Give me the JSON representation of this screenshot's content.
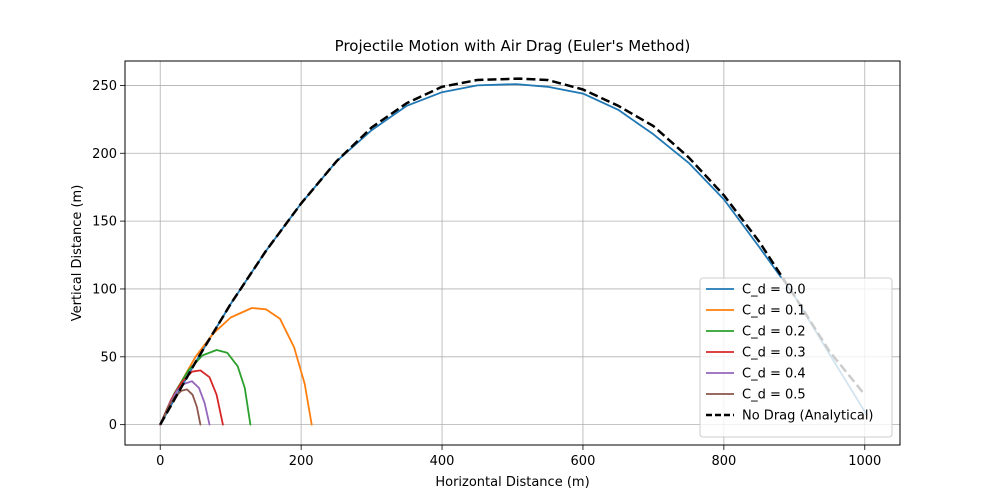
{
  "chart_data": {
    "type": "line",
    "title": "Projectile Motion with Air Drag (Euler's Method)",
    "xlabel": "Horizontal Distance (m)",
    "ylabel": "Vertical Distance (m)",
    "xlim": [
      -50,
      1050
    ],
    "ylim": [
      -15,
      268
    ],
    "xticks": [
      0,
      200,
      400,
      600,
      800,
      1000
    ],
    "yticks": [
      0,
      50,
      100,
      150,
      200,
      250
    ],
    "grid": true,
    "legend_position": "lower right",
    "series": [
      {
        "name": "C_d = 0.0",
        "color": "#1f77b4",
        "dash": "solid",
        "points": [
          [
            0,
            0
          ],
          [
            50,
            46
          ],
          [
            100,
            89
          ],
          [
            150,
            128
          ],
          [
            200,
            163
          ],
          [
            250,
            194
          ],
          [
            300,
            217
          ],
          [
            350,
            235
          ],
          [
            400,
            245
          ],
          [
            450,
            250
          ],
          [
            505,
            251
          ],
          [
            550,
            249
          ],
          [
            600,
            244
          ],
          [
            650,
            232
          ],
          [
            700,
            214
          ],
          [
            750,
            193
          ],
          [
            800,
            166
          ],
          [
            850,
            131
          ],
          [
            900,
            95
          ],
          [
            950,
            52
          ],
          [
            1003,
            7
          ]
        ]
      },
      {
        "name": "C_d = 0.1",
        "color": "#ff7f0e",
        "dash": "solid",
        "points": [
          [
            0,
            0
          ],
          [
            25,
            27
          ],
          [
            50,
            50
          ],
          [
            75,
            67
          ],
          [
            100,
            79
          ],
          [
            130,
            86
          ],
          [
            150,
            85
          ],
          [
            170,
            78
          ],
          [
            190,
            57
          ],
          [
            205,
            30
          ],
          [
            215,
            0
          ]
        ]
      },
      {
        "name": "C_d = 0.2",
        "color": "#2ca02c",
        "dash": "solid",
        "points": [
          [
            0,
            0
          ],
          [
            20,
            23
          ],
          [
            40,
            40
          ],
          [
            60,
            51
          ],
          [
            80,
            55
          ],
          [
            95,
            53
          ],
          [
            110,
            43
          ],
          [
            120,
            27
          ],
          [
            128,
            0
          ]
        ]
      },
      {
        "name": "C_d = 0.3",
        "color": "#d62728",
        "dash": "solid",
        "points": [
          [
            0,
            0
          ],
          [
            15,
            18
          ],
          [
            30,
            31
          ],
          [
            45,
            39
          ],
          [
            57,
            40
          ],
          [
            70,
            35
          ],
          [
            80,
            22
          ],
          [
            89,
            0
          ]
        ]
      },
      {
        "name": "C_d = 0.4",
        "color": "#9467bd",
        "dash": "solid",
        "points": [
          [
            0,
            0
          ],
          [
            12,
            14
          ],
          [
            24,
            25
          ],
          [
            34,
            30
          ],
          [
            45,
            32
          ],
          [
            55,
            27
          ],
          [
            63,
            16
          ],
          [
            70,
            0
          ]
        ]
      },
      {
        "name": "C_d = 0.5",
        "color": "#8c564b",
        "dash": "solid",
        "points": [
          [
            0,
            0
          ],
          [
            10,
            12
          ],
          [
            20,
            20
          ],
          [
            30,
            25
          ],
          [
            38,
            26
          ],
          [
            46,
            22
          ],
          [
            52,
            13
          ],
          [
            57,
            0
          ]
        ]
      },
      {
        "name": "No Drag (Analytical)",
        "color": "#000000",
        "dash": "dashed",
        "points": [
          [
            0,
            0
          ],
          [
            50,
            46
          ],
          [
            100,
            89
          ],
          [
            150,
            128
          ],
          [
            200,
            163
          ],
          [
            250,
            194
          ],
          [
            300,
            219
          ],
          [
            350,
            237
          ],
          [
            400,
            249
          ],
          [
            450,
            254
          ],
          [
            510,
            255
          ],
          [
            550,
            254
          ],
          [
            600,
            247
          ],
          [
            650,
            235
          ],
          [
            700,
            220
          ],
          [
            750,
            197
          ],
          [
            800,
            169
          ],
          [
            850,
            135
          ],
          [
            900,
            95
          ],
          [
            950,
            54
          ],
          [
            1000,
            22
          ]
        ]
      }
    ]
  }
}
